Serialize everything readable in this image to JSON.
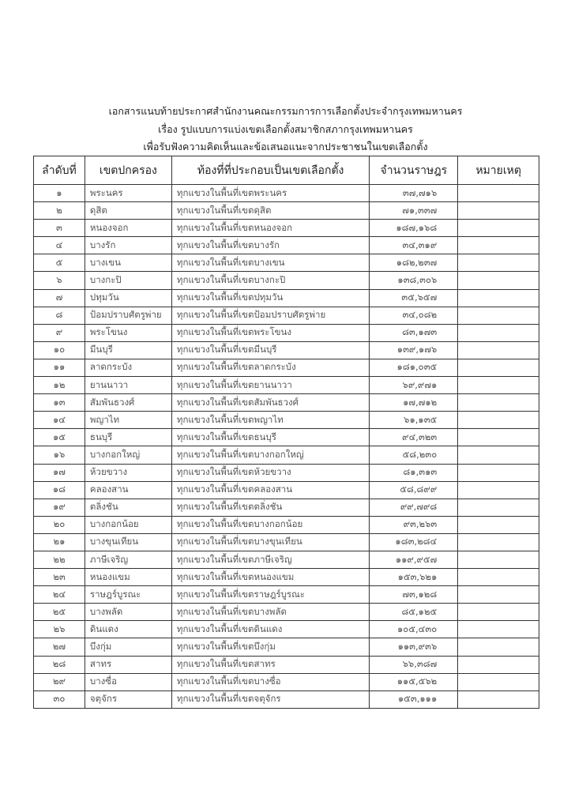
{
  "header": {
    "lines": [
      "เอกสารแนบท้ายประกาศสำนักงานคณะกรรมการการเลือกตั้งประจำกรุงเทพมหานคร",
      "เรื่อง รูปแบบการแบ่งเขตเลือกตั้งสมาชิกสภากรุงเทพมหานคร",
      "เพื่อรับฟังความคิดเห็นและข้อเสนอแนะจากประชาชนในเขตเลือกตั้ง"
    ]
  },
  "table": {
    "columns": [
      "ลำดับที่",
      "เขตปกครอง",
      "ท้องที่ที่ประกอบเป็นเขตเลือกตั้ง",
      "จำนวนราษฎร",
      "หมายเหตุ"
    ],
    "rows": [
      {
        "no": "๑",
        "district": "พระนคร",
        "area": "ทุกแขวงในพื้นที่เขตพระนคร",
        "population": "๓๗,๗๑๖",
        "note": ""
      },
      {
        "no": "๒",
        "district": "ดุสิต",
        "area": "ทุกแขวงในพื้นที่เขตดุสิต",
        "population": "๗๑,๓๓๗",
        "note": ""
      },
      {
        "no": "๓",
        "district": "หนองจอก",
        "area": "ทุกแขวงในพื้นที่เขตหนองจอก",
        "population": "๑๘๗,๑๖๘",
        "note": ""
      },
      {
        "no": "๔",
        "district": "บางรัก",
        "area": "ทุกแขวงในพื้นที่เขตบางรัก",
        "population": "๓๔,๓๑๙",
        "note": ""
      },
      {
        "no": "๕",
        "district": "บางเขน",
        "area": "ทุกแขวงในพื้นที่เขตบางเขน",
        "population": "๑๘๒,๒๓๗",
        "note": ""
      },
      {
        "no": "๖",
        "district": "บางกะปิ",
        "area": "ทุกแขวงในพื้นที่เขตบางกะปิ",
        "population": "๑๓๘,๓๐๖",
        "note": ""
      },
      {
        "no": "๗",
        "district": "ปทุมวัน",
        "area": "ทุกแขวงในพื้นที่เขตปทุมวัน",
        "population": "๓๕,๖๕๗",
        "note": ""
      },
      {
        "no": "๘",
        "district": "ป้อมปราบศัตรูพ่าย",
        "area": "ทุกแขวงในพื้นที่เขตป้อมปราบศัตรูพ่าย",
        "population": "๓๔,๐๘๒",
        "note": ""
      },
      {
        "no": "๙",
        "district": "พระโขนง",
        "area": "ทุกแขวงในพื้นที่เขตพระโขนง",
        "population": "๘๓,๑๗๓",
        "note": ""
      },
      {
        "no": "๑๐",
        "district": "มีนบุรี",
        "area": "ทุกแขวงในพื้นที่เขตมีนบุรี",
        "population": "๑๓๙,๑๗๖",
        "note": ""
      },
      {
        "no": "๑๑",
        "district": "ลาดกระบัง",
        "area": "ทุกแขวงในพื้นที่เขตลาดกระบัง",
        "population": "๑๘๑,๐๓๕",
        "note": ""
      },
      {
        "no": "๑๒",
        "district": "ยานนาวา",
        "area": "ทุกแขวงในพื้นที่เขตยานนาวา",
        "population": "๖๙,๙๗๑",
        "note": ""
      },
      {
        "no": "๑๓",
        "district": "สัมพันธวงศ์",
        "area": "ทุกแขวงในพื้นที่เขตสัมพันธวงศ์",
        "population": "๑๗,๗๑๒",
        "note": ""
      },
      {
        "no": "๑๔",
        "district": "พญาไท",
        "area": "ทุกแขวงในพื้นที่เขตพญาไท",
        "population": "๖๑,๑๓๕",
        "note": ""
      },
      {
        "no": "๑๕",
        "district": "ธนบุรี",
        "area": "ทุกแขวงในพื้นที่เขตธนบุรี",
        "population": "๙๔,๓๒๓",
        "note": ""
      },
      {
        "no": "๑๖",
        "district": "บางกอกใหญ่",
        "area": "ทุกแขวงในพื้นที่เขตบางกอกใหญ่",
        "population": "๕๘,๒๓๐",
        "note": ""
      },
      {
        "no": "๑๗",
        "district": "ห้วยขวาง",
        "area": "ทุกแขวงในพื้นที่เขตห้วยขวาง",
        "population": "๘๑,๓๑๓",
        "note": ""
      },
      {
        "no": "๑๘",
        "district": "คลองสาน",
        "area": "ทุกแขวงในพื้นที่เขตคลองสาน",
        "population": "๕๘,๘๙๙",
        "note": ""
      },
      {
        "no": "๑๙",
        "district": "ตลิ่งชัน",
        "area": "ทุกแขวงในพื้นที่เขตตลิ่งชัน",
        "population": "๙๙,๗๙๘",
        "note": ""
      },
      {
        "no": "๒๐",
        "district": "บางกอกน้อย",
        "area": "ทุกแขวงในพื้นที่เขตบางกอกน้อย",
        "population": "๙๓,๒๖๓",
        "note": ""
      },
      {
        "no": "๒๑",
        "district": "บางขุนเทียน",
        "area": "ทุกแขวงในพื้นที่เขตบางขุนเทียน",
        "population": "๑๘๓,๒๘๔",
        "note": ""
      },
      {
        "no": "๒๒",
        "district": "ภาษีเจริญ",
        "area": "ทุกแขวงในพื้นที่เขตภาษีเจริญ",
        "population": "๑๑๙,๙๕๗",
        "note": ""
      },
      {
        "no": "๒๓",
        "district": "หนองแขม",
        "area": "ทุกแขวงในพื้นที่เขตหนองแขม",
        "population": "๑๕๓,๖๒๑",
        "note": ""
      },
      {
        "no": "๒๔",
        "district": "ราษฎร์บูรณะ",
        "area": "ทุกแขวงในพื้นที่เขตราษฎร์บูรณะ",
        "population": "๗๓,๑๒๘",
        "note": ""
      },
      {
        "no": "๒๕",
        "district": "บางพลัด",
        "area": "ทุกแขวงในพื้นที่เขตบางพลัด",
        "population": "๘๕,๑๒๕",
        "note": ""
      },
      {
        "no": "๒๖",
        "district": "ดินแดง",
        "area": "ทุกแขวงในพื้นที่เขตดินแดง",
        "population": "๑๐๕,๔๓๐",
        "note": ""
      },
      {
        "no": "๒๗",
        "district": "บึงกุ่ม",
        "area": "ทุกแขวงในพื้นที่เขตบึงกุ่ม",
        "population": "๑๑๓,๙๓๖",
        "note": ""
      },
      {
        "no": "๒๘",
        "district": "สาทร",
        "area": "ทุกแขวงในพื้นที่เขตสาทร",
        "population": "๖๖,๓๘๗",
        "note": ""
      },
      {
        "no": "๒๙",
        "district": "บางซื่อ",
        "area": "ทุกแขวงในพื้นที่เขตบางซื่อ",
        "population": "๑๑๕,๕๖๒",
        "note": ""
      },
      {
        "no": "๓๐",
        "district": "จตุจักร",
        "area": "ทุกแขวงในพื้นที่เขตจตุจักร",
        "population": "๑๕๓,๑๑๑",
        "note": ""
      }
    ]
  }
}
